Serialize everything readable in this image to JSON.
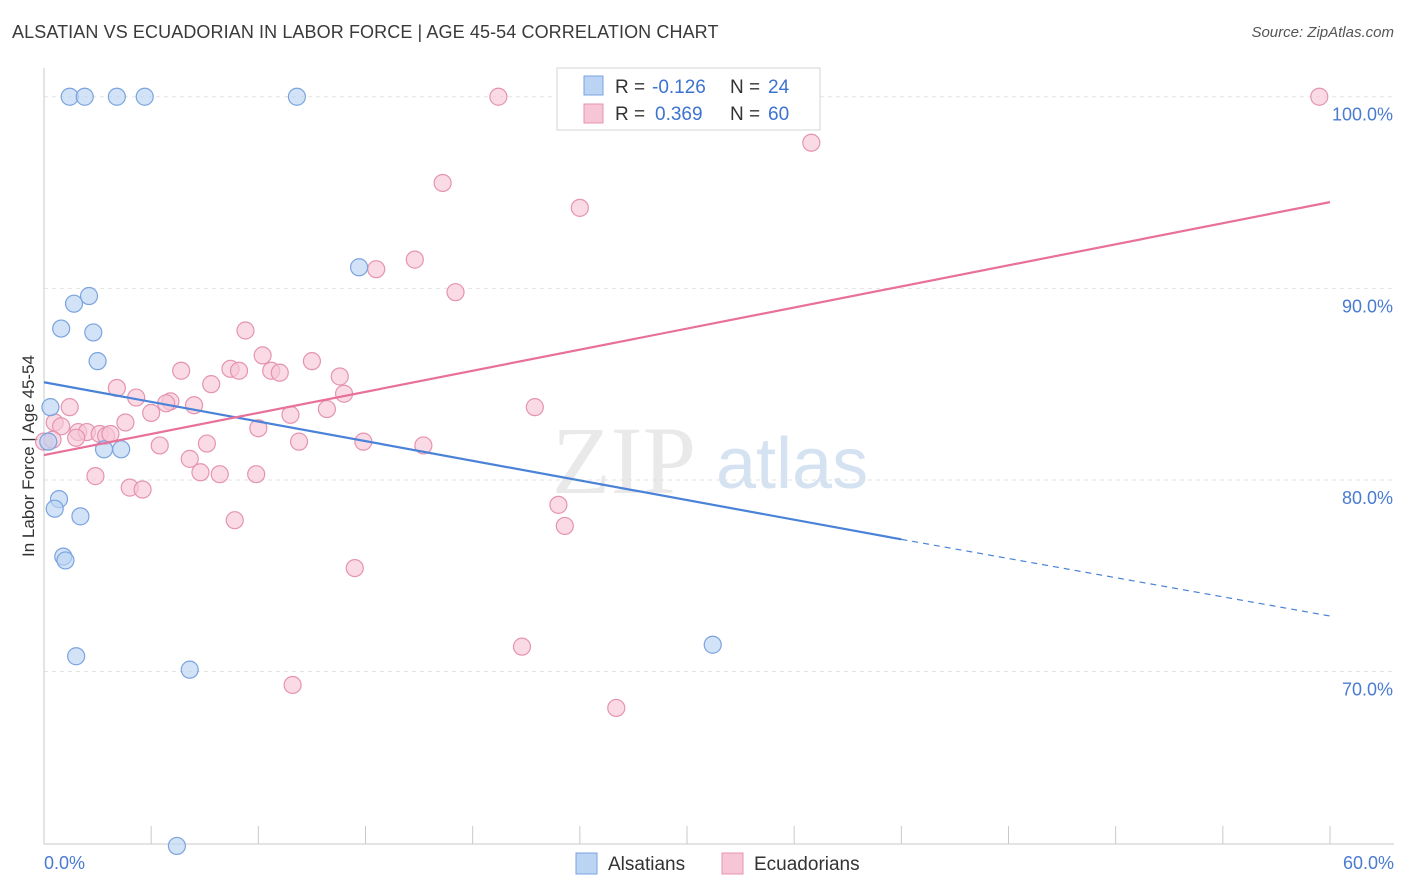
{
  "title": "ALSATIAN VS ECUADORIAN IN LABOR FORCE | AGE 45-54 CORRELATION CHART",
  "source": "Source: ZipAtlas.com",
  "colors": {
    "blue": "#4a82d8",
    "blue_fill": "#bcd4f3",
    "pink": "#e8709a",
    "pink_fill": "#f7c6d6",
    "tick_label": "#4a7bd0"
  },
  "chart_data": {
    "type": "scatter",
    "title": "ALSATIAN VS ECUADORIAN IN LABOR FORCE | AGE 45-54 CORRELATION CHART",
    "xlabel": "",
    "ylabel": "In Labor Force | Age 45-54",
    "xlim": [
      0,
      60
    ],
    "ylim": [
      61,
      101.5
    ],
    "x_tick_labels": [
      "0.0%",
      "60.0%"
    ],
    "y_ticks": [
      70,
      80,
      90,
      100
    ],
    "y_tick_labels": [
      "70.0%",
      "80.0%",
      "90.0%",
      "100.0%"
    ],
    "watermark": [
      "ZIP",
      "atlas"
    ],
    "legend": [
      {
        "name": "Alsatians",
        "r_label": "R =",
        "r": "-0.126",
        "n_label": "N =",
        "n": "24"
      },
      {
        "name": "Ecuadorians",
        "r_label": "R =",
        "r": "0.369",
        "n_label": "N =",
        "n": "60"
      }
    ],
    "series": [
      {
        "name": "Alsatians",
        "color": "blue",
        "points": [
          [
            1.2,
            100
          ],
          [
            1.9,
            100
          ],
          [
            3.4,
            100
          ],
          [
            4.7,
            100
          ],
          [
            11.8,
            100
          ],
          [
            14.7,
            91.1
          ],
          [
            2.1,
            89.6
          ],
          [
            1.4,
            89.2
          ],
          [
            0.8,
            87.9
          ],
          [
            2.3,
            87.7
          ],
          [
            2.5,
            86.2
          ],
          [
            0.3,
            83.8
          ],
          [
            0.2,
            82.0
          ],
          [
            2.8,
            81.6
          ],
          [
            3.6,
            81.6
          ],
          [
            0.7,
            79.0
          ],
          [
            0.5,
            78.5
          ],
          [
            1.7,
            78.1
          ],
          [
            0.9,
            76.0
          ],
          [
            1.0,
            75.8
          ],
          [
            1.5,
            70.8
          ],
          [
            6.8,
            70.1
          ],
          [
            31.2,
            71.4
          ],
          [
            6.2,
            60.9
          ]
        ],
        "trend": {
          "x0": 0,
          "y0": 85.1,
          "x1": 40,
          "y1": 76.9,
          "dash_to_x": 60,
          "dash_to_y": 72.9
        }
      },
      {
        "name": "Ecuadorians",
        "color": "pink",
        "points": [
          [
            21.2,
            100
          ],
          [
            59.5,
            100
          ],
          [
            35.8,
            97.6
          ],
          [
            18.6,
            95.5
          ],
          [
            25.0,
            94.2
          ],
          [
            17.3,
            91.5
          ],
          [
            15.5,
            91.0
          ],
          [
            19.2,
            89.8
          ],
          [
            9.4,
            87.8
          ],
          [
            10.2,
            86.5
          ],
          [
            12.5,
            86.2
          ],
          [
            6.4,
            85.7
          ],
          [
            8.7,
            85.8
          ],
          [
            9.1,
            85.7
          ],
          [
            10.6,
            85.7
          ],
          [
            11.0,
            85.6
          ],
          [
            13.8,
            85.4
          ],
          [
            7.8,
            85.0
          ],
          [
            3.4,
            84.8
          ],
          [
            14.0,
            84.5
          ],
          [
            5.9,
            84.1
          ],
          [
            4.3,
            84.3
          ],
          [
            5.7,
            84.0
          ],
          [
            7.0,
            83.9
          ],
          [
            1.2,
            83.8
          ],
          [
            13.2,
            83.7
          ],
          [
            5.0,
            83.5
          ],
          [
            11.5,
            83.4
          ],
          [
            22.9,
            83.8
          ],
          [
            0.5,
            83.0
          ],
          [
            0.8,
            82.8
          ],
          [
            3.8,
            83.0
          ],
          [
            1.6,
            82.5
          ],
          [
            2.0,
            82.5
          ],
          [
            2.6,
            82.4
          ],
          [
            2.9,
            82.3
          ],
          [
            3.1,
            82.4
          ],
          [
            1.5,
            82.2
          ],
          [
            10.0,
            82.7
          ],
          [
            0.0,
            82.0
          ],
          [
            5.4,
            81.8
          ],
          [
            7.6,
            81.9
          ],
          [
            11.9,
            82.0
          ],
          [
            14.9,
            82.0
          ],
          [
            17.7,
            81.8
          ],
          [
            6.8,
            81.1
          ],
          [
            2.4,
            80.2
          ],
          [
            7.3,
            80.4
          ],
          [
            8.2,
            80.3
          ],
          [
            9.9,
            80.3
          ],
          [
            4.0,
            79.6
          ],
          [
            4.6,
            79.5
          ],
          [
            24.0,
            78.7
          ],
          [
            8.9,
            77.9
          ],
          [
            24.3,
            77.6
          ],
          [
            14.5,
            75.4
          ],
          [
            22.3,
            71.3
          ],
          [
            11.6,
            69.3
          ],
          [
            26.7,
            68.1
          ],
          [
            0.4,
            82.1
          ]
        ],
        "trend": {
          "x0": 0,
          "y0": 81.3,
          "x1": 60,
          "y1": 94.5
        }
      }
    ]
  }
}
